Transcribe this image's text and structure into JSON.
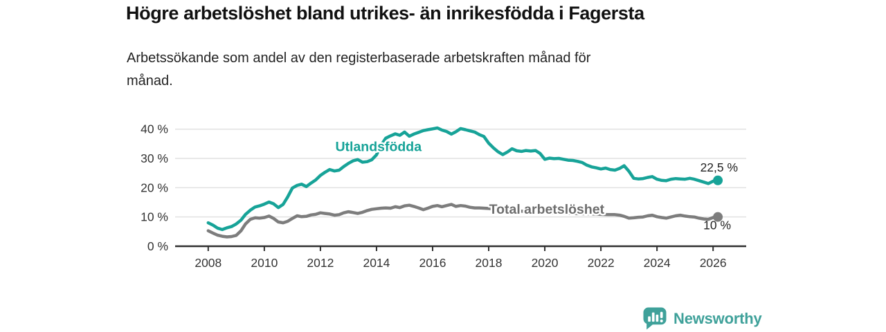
{
  "header": {
    "title": "Högre arbetslöshet bland utrikes- än inrikesfödda i Fagersta",
    "subtitle_lines": [
      "Arbetssökande som andel av den registerbaserade arbetskraften månad för",
      "månad."
    ]
  },
  "footer": {
    "brand": "Newsworthy",
    "brand_color": "#3FA19A"
  },
  "chart_data": {
    "type": "line",
    "title": "Högre arbetslöshet bland utrikes- än inrikesfödda i Fagersta",
    "subtitle": "Arbetssökande som andel av den registerbaserade arbetskraften månad för månad.",
    "unit": "%",
    "grid": "horizontal",
    "legend_position": "inline-labels",
    "xlim": [
      2006.82,
      2027.18
    ],
    "ylim": [
      0,
      43
    ],
    "x_axis": {
      "ticks": [
        {
          "value": 2008,
          "label": "2008"
        },
        {
          "value": 2010,
          "label": "2010"
        },
        {
          "value": 2012,
          "label": "2012"
        },
        {
          "value": 2014,
          "label": "2014"
        },
        {
          "value": 2016,
          "label": "2016"
        },
        {
          "value": 2018,
          "label": "2018"
        },
        {
          "value": 2020,
          "label": "2020"
        },
        {
          "value": 2022,
          "label": "2022"
        },
        {
          "value": 2024,
          "label": "2024"
        },
        {
          "value": 2026,
          "label": "2026"
        }
      ]
    },
    "y_axis": {
      "ticks": [
        {
          "value": 0,
          "label": "0 %"
        },
        {
          "value": 10,
          "label": "10 %"
        },
        {
          "value": 20,
          "label": "20 %"
        },
        {
          "value": 30,
          "label": "30 %"
        },
        {
          "value": 40,
          "label": "40 %"
        }
      ]
    },
    "series": [
      {
        "name": "Total arbetslöshet",
        "color": "#7D7D7D",
        "label_color": "#6E6E6E",
        "label_x": 2020.07,
        "label_y": 12.8,
        "end_value": 10,
        "end_label": "10 %",
        "end_label_offset": {
          "dx": 19,
          "dy": 18,
          "anchor": "end"
        },
        "points": [
          [
            2008.0,
            5.3
          ],
          [
            2008.17,
            4.5
          ],
          [
            2008.33,
            3.8
          ],
          [
            2008.5,
            3.4
          ],
          [
            2008.67,
            3.2
          ],
          [
            2008.83,
            3.3
          ],
          [
            2009.0,
            3.7
          ],
          [
            2009.17,
            5.3
          ],
          [
            2009.33,
            7.6
          ],
          [
            2009.5,
            9.2
          ],
          [
            2009.67,
            9.7
          ],
          [
            2009.83,
            9.6
          ],
          [
            2010.0,
            9.8
          ],
          [
            2010.17,
            10.3
          ],
          [
            2010.33,
            9.5
          ],
          [
            2010.5,
            8.3
          ],
          [
            2010.67,
            8.0
          ],
          [
            2010.83,
            8.5
          ],
          [
            2011.0,
            9.5
          ],
          [
            2011.17,
            10.4
          ],
          [
            2011.33,
            10.1
          ],
          [
            2011.5,
            10.2
          ],
          [
            2011.67,
            10.7
          ],
          [
            2011.83,
            10.9
          ],
          [
            2012.0,
            11.4
          ],
          [
            2012.17,
            11.2
          ],
          [
            2012.33,
            11.0
          ],
          [
            2012.5,
            10.6
          ],
          [
            2012.67,
            10.8
          ],
          [
            2012.83,
            11.4
          ],
          [
            2013.0,
            11.8
          ],
          [
            2013.17,
            11.5
          ],
          [
            2013.33,
            11.2
          ],
          [
            2013.5,
            11.6
          ],
          [
            2013.67,
            12.2
          ],
          [
            2013.83,
            12.6
          ],
          [
            2014.0,
            12.8
          ],
          [
            2014.17,
            13.0
          ],
          [
            2014.33,
            13.1
          ],
          [
            2014.5,
            13.0
          ],
          [
            2014.67,
            13.5
          ],
          [
            2014.83,
            13.2
          ],
          [
            2015.0,
            13.8
          ],
          [
            2015.17,
            14.0
          ],
          [
            2015.33,
            13.6
          ],
          [
            2015.5,
            13.1
          ],
          [
            2015.67,
            12.5
          ],
          [
            2015.83,
            13.0
          ],
          [
            2016.0,
            13.6
          ],
          [
            2016.17,
            13.9
          ],
          [
            2016.33,
            13.5
          ],
          [
            2016.5,
            13.9
          ],
          [
            2016.67,
            14.3
          ],
          [
            2016.83,
            13.6
          ],
          [
            2017.0,
            13.9
          ],
          [
            2017.17,
            13.7
          ],
          [
            2017.33,
            13.3
          ],
          [
            2017.5,
            13.1
          ],
          [
            2017.67,
            13.1
          ],
          [
            2017.83,
            13.0
          ],
          [
            2018.0,
            12.9
          ],
          [
            2018.25,
            12.6
          ],
          [
            2018.5,
            12.4
          ],
          [
            2018.75,
            12.2
          ],
          [
            2019.0,
            12.1
          ],
          [
            2019.25,
            11.9
          ],
          [
            2019.5,
            11.8
          ],
          [
            2019.75,
            11.6
          ],
          [
            2020.0,
            11.5
          ],
          [
            2020.25,
            11.4
          ],
          [
            2020.5,
            11.4
          ],
          [
            2020.75,
            11.3
          ],
          [
            2021.0,
            11.2
          ],
          [
            2021.25,
            11.1
          ],
          [
            2021.5,
            11.1
          ],
          [
            2021.75,
            11.0
          ],
          [
            2022.0,
            10.9
          ],
          [
            2022.25,
            10.8
          ],
          [
            2022.5,
            10.8
          ],
          [
            2022.67,
            10.6
          ],
          [
            2022.83,
            10.2
          ],
          [
            2023.0,
            9.6
          ],
          [
            2023.17,
            9.7
          ],
          [
            2023.33,
            9.9
          ],
          [
            2023.5,
            10.0
          ],
          [
            2023.67,
            10.4
          ],
          [
            2023.83,
            10.6
          ],
          [
            2024.0,
            10.1
          ],
          [
            2024.17,
            9.8
          ],
          [
            2024.33,
            9.6
          ],
          [
            2024.5,
            10.0
          ],
          [
            2024.67,
            10.4
          ],
          [
            2024.83,
            10.6
          ],
          [
            2025.0,
            10.3
          ],
          [
            2025.17,
            10.1
          ],
          [
            2025.33,
            10.0
          ],
          [
            2025.5,
            9.6
          ],
          [
            2025.67,
            9.3
          ],
          [
            2025.83,
            9.2
          ],
          [
            2026.0,
            9.8
          ],
          [
            2026.17,
            10.0
          ]
        ]
      },
      {
        "name": "Utlandsfödda",
        "color": "#17A398",
        "label_color": "#17A398",
        "label_x": 2014.07,
        "label_y": 34.1,
        "end_value": 22.5,
        "end_label": "22,5 %",
        "end_label_offset": {
          "dx": 29,
          "dy": -13,
          "anchor": "end"
        },
        "points": [
          [
            2008.0,
            8.0
          ],
          [
            2008.17,
            7.2
          ],
          [
            2008.33,
            6.2
          ],
          [
            2008.5,
            5.7
          ],
          [
            2008.67,
            6.3
          ],
          [
            2008.83,
            6.7
          ],
          [
            2009.0,
            7.6
          ],
          [
            2009.17,
            8.9
          ],
          [
            2009.33,
            10.9
          ],
          [
            2009.5,
            12.3
          ],
          [
            2009.67,
            13.4
          ],
          [
            2009.83,
            13.8
          ],
          [
            2010.0,
            14.4
          ],
          [
            2010.17,
            15.1
          ],
          [
            2010.33,
            14.5
          ],
          [
            2010.5,
            13.2
          ],
          [
            2010.67,
            14.3
          ],
          [
            2010.83,
            16.8
          ],
          [
            2011.0,
            19.9
          ],
          [
            2011.17,
            20.8
          ],
          [
            2011.33,
            21.2
          ],
          [
            2011.5,
            20.4
          ],
          [
            2011.67,
            21.6
          ],
          [
            2011.83,
            22.6
          ],
          [
            2012.0,
            24.2
          ],
          [
            2012.17,
            25.3
          ],
          [
            2012.33,
            26.2
          ],
          [
            2012.5,
            25.7
          ],
          [
            2012.67,
            26.0
          ],
          [
            2012.83,
            27.2
          ],
          [
            2013.0,
            28.3
          ],
          [
            2013.17,
            29.2
          ],
          [
            2013.33,
            29.6
          ],
          [
            2013.5,
            28.7
          ],
          [
            2013.67,
            28.9
          ],
          [
            2013.83,
            29.5
          ],
          [
            2014.0,
            31.2
          ],
          [
            2014.17,
            34.6
          ],
          [
            2014.33,
            36.9
          ],
          [
            2014.5,
            37.7
          ],
          [
            2014.67,
            38.4
          ],
          [
            2014.83,
            37.9
          ],
          [
            2015.0,
            39.0
          ],
          [
            2015.17,
            37.6
          ],
          [
            2015.33,
            38.3
          ],
          [
            2015.5,
            38.9
          ],
          [
            2015.67,
            39.5
          ],
          [
            2015.83,
            39.8
          ],
          [
            2016.0,
            40.1
          ],
          [
            2016.17,
            40.4
          ],
          [
            2016.33,
            39.7
          ],
          [
            2016.5,
            39.2
          ],
          [
            2016.67,
            38.3
          ],
          [
            2016.83,
            39.1
          ],
          [
            2017.0,
            40.2
          ],
          [
            2017.17,
            39.8
          ],
          [
            2017.33,
            39.4
          ],
          [
            2017.5,
            39.0
          ],
          [
            2017.67,
            38.1
          ],
          [
            2017.83,
            37.5
          ],
          [
            2018.0,
            35.2
          ],
          [
            2018.17,
            33.6
          ],
          [
            2018.33,
            32.3
          ],
          [
            2018.5,
            31.3
          ],
          [
            2018.67,
            32.2
          ],
          [
            2018.83,
            33.3
          ],
          [
            2019.0,
            32.6
          ],
          [
            2019.17,
            32.4
          ],
          [
            2019.33,
            32.7
          ],
          [
            2019.5,
            32.5
          ],
          [
            2019.67,
            32.7
          ],
          [
            2019.83,
            31.7
          ],
          [
            2020.0,
            29.7
          ],
          [
            2020.17,
            30.1
          ],
          [
            2020.33,
            29.9
          ],
          [
            2020.5,
            30.0
          ],
          [
            2020.67,
            29.7
          ],
          [
            2020.83,
            29.4
          ],
          [
            2021.0,
            29.3
          ],
          [
            2021.17,
            29.0
          ],
          [
            2021.33,
            28.6
          ],
          [
            2021.5,
            27.7
          ],
          [
            2021.67,
            27.1
          ],
          [
            2021.83,
            26.8
          ],
          [
            2022.0,
            26.4
          ],
          [
            2022.17,
            26.7
          ],
          [
            2022.33,
            26.2
          ],
          [
            2022.5,
            26.0
          ],
          [
            2022.67,
            26.6
          ],
          [
            2022.83,
            27.5
          ],
          [
            2023.0,
            25.6
          ],
          [
            2023.17,
            23.2
          ],
          [
            2023.33,
            23.0
          ],
          [
            2023.5,
            23.1
          ],
          [
            2023.67,
            23.5
          ],
          [
            2023.83,
            23.8
          ],
          [
            2024.0,
            22.9
          ],
          [
            2024.17,
            22.5
          ],
          [
            2024.33,
            22.4
          ],
          [
            2024.5,
            22.9
          ],
          [
            2024.67,
            23.1
          ],
          [
            2024.83,
            23.0
          ],
          [
            2025.0,
            22.9
          ],
          [
            2025.17,
            23.2
          ],
          [
            2025.33,
            22.9
          ],
          [
            2025.5,
            22.4
          ],
          [
            2025.67,
            21.9
          ],
          [
            2025.83,
            21.4
          ],
          [
            2026.0,
            22.2
          ],
          [
            2026.17,
            22.5
          ]
        ]
      }
    ]
  }
}
